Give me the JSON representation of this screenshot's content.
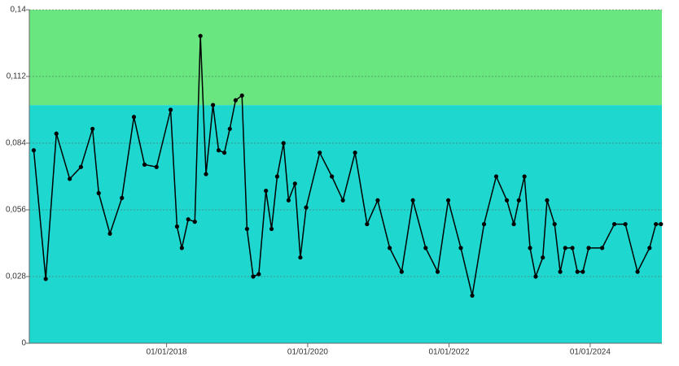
{
  "chart_data": {
    "type": "line",
    "x": [
      "2016-02-14",
      "2016-04-16",
      "2016-06-10",
      "2016-08-18",
      "2016-10-15",
      "2016-12-14",
      "2017-01-15",
      "2017-03-14",
      "2017-05-15",
      "2017-07-16",
      "2017-09-09",
      "2017-11-10",
      "2018-01-22",
      "2018-02-24",
      "2018-03-21",
      "2018-04-23",
      "2018-05-27",
      "2018-06-25",
      "2018-07-24",
      "2018-08-29",
      "2018-09-27",
      "2018-10-27",
      "2018-11-24",
      "2018-12-24",
      "2019-01-26",
      "2019-02-21",
      "2019-03-25",
      "2019-04-23",
      "2019-05-30",
      "2019-06-28",
      "2019-07-27",
      "2019-08-29",
      "2019-09-24",
      "2019-10-27",
      "2019-11-24",
      "2019-12-24",
      "2020-03-03",
      "2020-05-05",
      "2020-07-01",
      "2020-09-02",
      "2020-11-03",
      "2020-12-28",
      "2021-02-28",
      "2021-05-01",
      "2021-06-28",
      "2021-09-02",
      "2021-11-03",
      "2021-12-28",
      "2022-03-03",
      "2022-05-01",
      "2022-07-01",
      "2022-09-02",
      "2022-10-27",
      "2022-12-02",
      "2022-12-28",
      "2023-01-26",
      "2023-02-24",
      "2023-03-25",
      "2023-05-01",
      "2023-05-23",
      "2023-07-01",
      "2023-07-30",
      "2023-08-25",
      "2023-10-01",
      "2023-10-27",
      "2023-11-24",
      "2023-12-24",
      "2024-03-03",
      "2024-05-05",
      "2024-07-01",
      "2024-09-02",
      "2024-11-03",
      "2024-12-06",
      "2025-01-01"
    ],
    "series": [
      {
        "color": "#000000",
        "values": [
          0.081,
          0.027,
          0.088,
          0.069,
          0.074,
          0.09,
          0.063,
          0.046,
          0.061,
          0.095,
          0.075,
          0.074,
          0.098,
          0.049,
          0.04,
          0.052,
          0.051,
          0.129,
          0.071,
          0.1,
          0.081,
          0.08,
          0.09,
          0.102,
          0.104,
          0.048,
          0.028,
          0.029,
          0.064,
          0.048,
          0.07,
          0.084,
          0.06,
          0.067,
          0.036,
          0.057,
          0.08,
          0.07,
          0.06,
          0.08,
          0.05,
          0.06,
          0.04,
          0.03,
          0.06,
          0.04,
          0.03,
          0.06,
          0.04,
          0.02,
          0.05,
          0.07,
          0.06,
          0.05,
          0.06,
          0.07,
          0.04,
          0.028,
          0.036,
          0.06,
          0.05,
          0.03,
          0.04,
          0.04,
          0.03,
          0.03,
          0.04,
          0.04,
          0.05,
          0.05,
          0.03,
          0.04,
          0.05,
          0.05
        ]
      }
    ],
    "xlim": [
      "2016-01-22",
      "2025-01-06"
    ],
    "xticks": [
      {
        "value": "2018-01-01",
        "label": "01/01/2018"
      },
      {
        "value": "2020-01-01",
        "label": "01/01/2020"
      },
      {
        "value": "2022-01-01",
        "label": "01/01/2022"
      },
      {
        "value": "2024-01-01",
        "label": "01/01/2024"
      }
    ],
    "ylim": [
      0,
      0.14
    ],
    "yticks": [
      0,
      {
        "value": 0.028,
        "label": "0,028"
      },
      {
        "value": 0.056,
        "label": "0,056"
      },
      {
        "value": 0.084,
        "label": "0,084"
      },
      {
        "value": 0.112,
        "label": "0,112"
      },
      {
        "value": 0.14,
        "label": "0,14"
      }
    ],
    "bands": [
      {
        "from": 0,
        "to": 0.1,
        "color": "#1ed8d0"
      },
      {
        "from": 0.1,
        "to": 0.14,
        "color": "#69e67f"
      }
    ],
    "grid": true
  }
}
